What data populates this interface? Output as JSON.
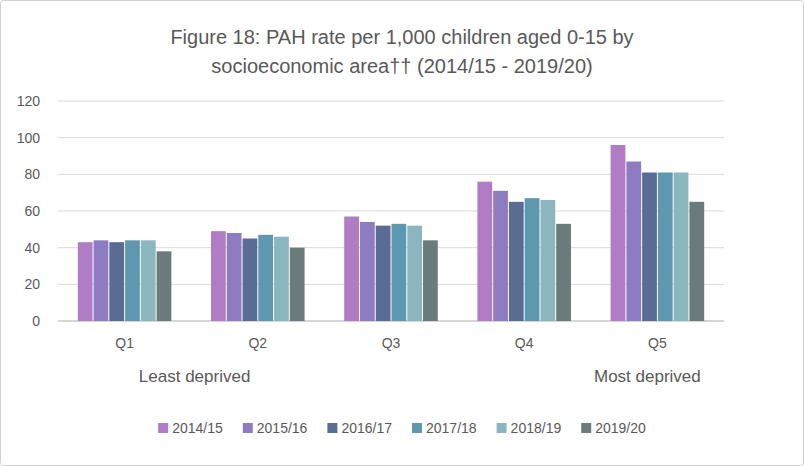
{
  "chart_data": {
    "type": "bar",
    "title": "Figure 18: PAH rate per 1,000 children aged 0-15 by socioeconomic area†† (2014/15 - 2019/20)",
    "categories": [
      "Q1",
      "Q2",
      "Q3",
      "Q4",
      "Q5"
    ],
    "series": [
      {
        "name": "2014/15",
        "color": "#b07cc6",
        "values": [
          43,
          49,
          57,
          76,
          96
        ]
      },
      {
        "name": "2015/16",
        "color": "#8e7cc3",
        "values": [
          44,
          48,
          54,
          71,
          87
        ]
      },
      {
        "name": "2016/17",
        "color": "#5a6b94",
        "values": [
          43,
          45,
          52,
          65,
          81
        ]
      },
      {
        "name": "2017/18",
        "color": "#5e97b0",
        "values": [
          44,
          47,
          53,
          67,
          81
        ]
      },
      {
        "name": "2018/19",
        "color": "#8ab6c0",
        "values": [
          44,
          46,
          52,
          66,
          81
        ]
      },
      {
        "name": "2019/20",
        "color": "#6b7b7b",
        "values": [
          38,
          40,
          44,
          53,
          65
        ]
      }
    ],
    "annotations": [
      {
        "text": "Least deprived",
        "category": "Q1"
      },
      {
        "text": "Most deprived",
        "category": "Q5"
      }
    ],
    "ylim": [
      0,
      120
    ],
    "yticks": [
      0,
      20,
      40,
      60,
      80,
      100,
      120
    ],
    "grid": true,
    "legend": "bottom"
  }
}
